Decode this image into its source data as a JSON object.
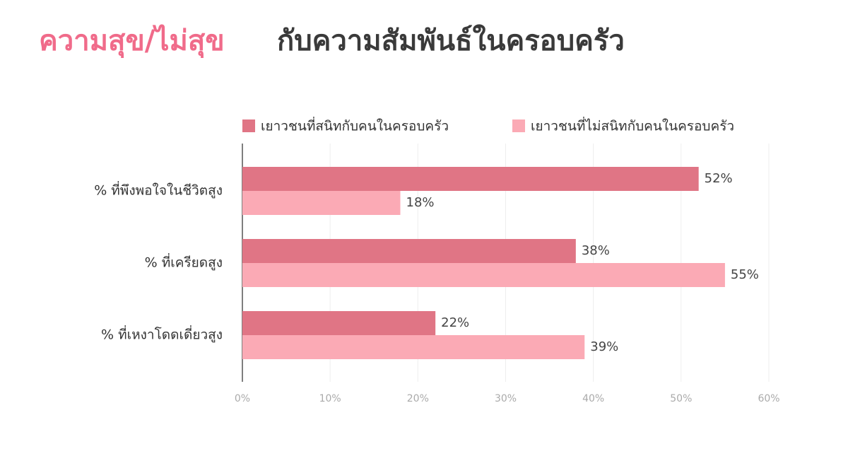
{
  "chart_data": {
    "type": "hbar",
    "title": [
      "ความสุข/ไม่สุข",
      "กับความสัมพันธ์ในครอบครัว"
    ],
    "categories": [
      "% ที่พึงพอใจในชีวิตสูง",
      "% ที่เครียดสูง",
      "% ที่เหงาโดดเดี่ยวสูง"
    ],
    "series": [
      {
        "name": "เยาวชนที่สนิทกับคนในครอบครัว",
        "color": "#e07585",
        "values": [
          52,
          38,
          22
        ],
        "value_labels": [
          "52%",
          "38%",
          "22%"
        ]
      },
      {
        "name": "เยาวชนที่ไม่สนิทกับคนในครอบครัว",
        "color": "#fbaab5",
        "values": [
          18,
          55,
          39
        ],
        "value_labels": [
          "18%",
          "55%",
          "39%"
        ]
      }
    ],
    "xlim": [
      0,
      60
    ],
    "xticks": [
      {
        "value": 0,
        "label": "0%"
      },
      {
        "value": 10,
        "label": "10%"
      },
      {
        "value": 20,
        "label": "20%"
      },
      {
        "value": 30,
        "label": "30%"
      },
      {
        "value": 40,
        "label": "40%"
      },
      {
        "value": 50,
        "label": "50%"
      },
      {
        "value": 60,
        "label": "60%"
      }
    ],
    "grid": true
  }
}
